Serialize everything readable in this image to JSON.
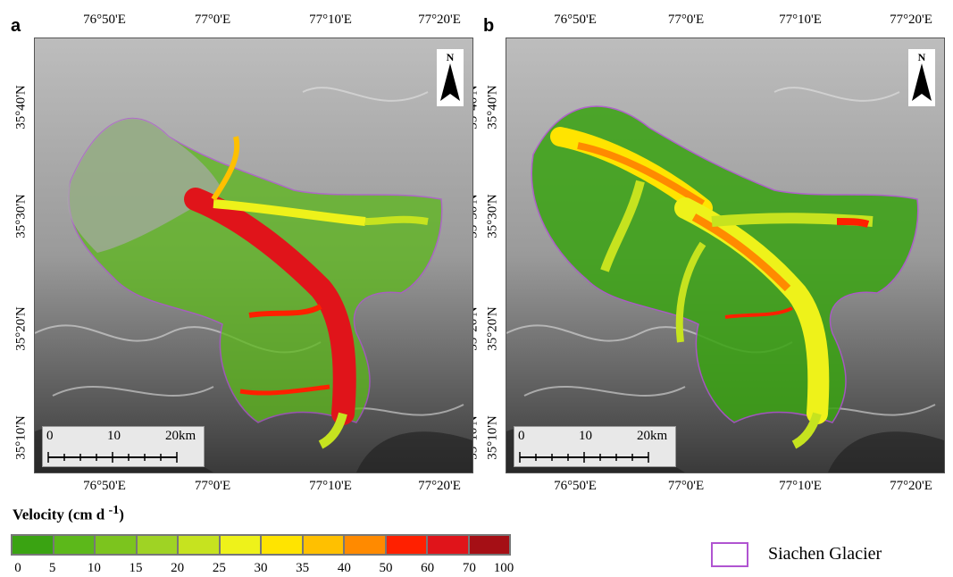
{
  "panels": [
    {
      "letter": "a",
      "lon_top": [
        "76°50'E",
        "77°0'E",
        "77°10'E",
        "77°20'E"
      ],
      "lon_bottom": [
        "76°50'E",
        "77°0'E",
        "77°10'E",
        "77°20'E"
      ],
      "lat_left": [
        "35°40'N",
        "35°30'N",
        "35°20'N",
        "35°10'N"
      ],
      "lat_right": [
        "35°40'N",
        "35°30'N",
        "35°20'N",
        "35°10'N"
      ],
      "scale_labels": [
        "0",
        "10",
        "20km"
      ],
      "north_label": "N"
    },
    {
      "letter": "b",
      "lon_top": [
        "76°50'E",
        "77°0'E",
        "77°10'E",
        "77°20'E"
      ],
      "lon_bottom": [
        "76°50'E",
        "77°0'E",
        "77°10'E",
        "77°20'E"
      ],
      "lat_left": [
        "35°40'N",
        "35°30'N",
        "35°20'N",
        "35°10'N"
      ],
      "lat_right": [
        "35°40'N",
        "35°30'N",
        "35°20'N",
        "35°10'N"
      ],
      "scale_labels": [
        "0",
        "10",
        "20km"
      ],
      "north_label": "N"
    }
  ],
  "legend": {
    "title": "Velocity (cm d ",
    "title_sup": "-1",
    "title_end": ")",
    "ticks": [
      "0",
      "5",
      "10",
      "15",
      "20",
      "25",
      "30",
      "35",
      "40",
      "50",
      "60",
      "70",
      "100"
    ],
    "colors": [
      "#3aa312",
      "#5cb81a",
      "#7cc41e",
      "#9fd324",
      "#c6e31f",
      "#eef21a",
      "#ffe400",
      "#ffc000",
      "#ff8a00",
      "#ff2000",
      "#e0141a",
      "#a50f15"
    ]
  },
  "outline_legend": {
    "label": "Siachen Glacier",
    "color": "#b054d1"
  }
}
